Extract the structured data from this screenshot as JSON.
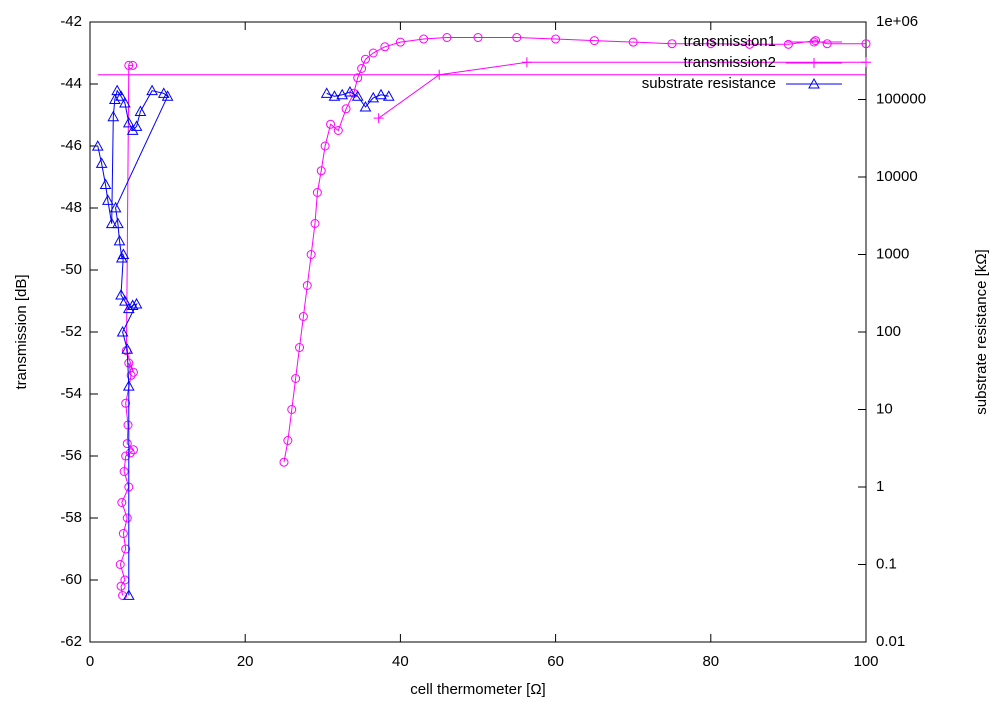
{
  "chart_data": {
    "type": "scatter",
    "xlabel": "cell thermometer [Ω]",
    "ylabel": "transmission [dB]",
    "y2label": "substrate resistance [kΩ]",
    "xlim": [
      0,
      100
    ],
    "xticks": [
      0,
      20,
      40,
      60,
      80,
      100
    ],
    "ylim": [
      -62,
      -42
    ],
    "yticks": [
      -62,
      -60,
      -58,
      -56,
      -54,
      -52,
      -50,
      -48,
      -46,
      -44,
      -42
    ],
    "y2lim": [
      0.01,
      1000000
    ],
    "y2scale": "log",
    "y2ticks": [
      0.01,
      0.1,
      1,
      10,
      100,
      1000,
      10000,
      100000,
      {
        "value": 1000000,
        "label": "1e+06"
      }
    ],
    "legend": "top-right",
    "series": [
      {
        "name": "transmission1",
        "color": "#ff00ff",
        "marker": "circle",
        "axis": "y",
        "x": [
          4.2,
          4.0,
          4.5,
          3.9,
          4.6,
          4.3,
          4.8,
          4.1,
          5.0,
          4.4,
          4.6,
          5.2,
          5.6,
          4.8,
          4.9,
          4.6,
          5.3,
          5.0,
          5.6,
          4.7,
          5.0,
          5.5,
          25,
          25,
          25.5,
          26,
          26.5,
          27,
          27.5,
          28,
          28.5,
          29,
          29.3,
          29.8,
          30.3,
          31,
          32,
          33,
          34,
          34.5,
          35,
          35.5,
          36.5,
          38,
          40,
          43,
          46,
          50,
          55,
          60,
          65,
          70,
          75,
          80,
          85,
          90,
          93.5,
          95,
          100
        ],
        "values": [
          -60.5,
          -60.2,
          -60.0,
          -59.5,
          -59.0,
          -58.5,
          -58.0,
          -57.5,
          -57.0,
          -56.5,
          -56.0,
          -55.9,
          -55.8,
          -55.6,
          -55.0,
          -54.3,
          -53.4,
          -53.0,
          -53.3,
          -52.6,
          -43.4,
          -43.4,
          null,
          -56.2,
          -55.5,
          -54.5,
          -53.5,
          -52.5,
          -51.5,
          -50.5,
          -49.5,
          -48.5,
          -47.5,
          -46.8,
          -46.0,
          -45.3,
          -45.5,
          -44.8,
          -44.3,
          -43.8,
          -43.5,
          -43.2,
          -43.0,
          -42.8,
          -42.65,
          -42.55,
          -42.5,
          -42.5,
          -42.5,
          -42.55,
          -42.6,
          -42.65,
          -42.7,
          -42.7,
          -42.72,
          -42.72,
          -42.6,
          -42.7,
          -42.7
        ]
      },
      {
        "name": "transmission2",
        "color": "#ff00ff",
        "marker": "plus",
        "axis": "y",
        "x": [
          1,
          100,
          100,
          37.2,
          45,
          56.3,
          100
        ],
        "values": [
          -43.7,
          -43.7,
          null,
          -45.1,
          -43.7,
          -43.3,
          -43.3
        ]
      },
      {
        "name": "substrate resistance",
        "color": "#0000ff",
        "marker": "triangle",
        "axis": "y2",
        "x": [
          1,
          1.5,
          2,
          2.3,
          2.8,
          3,
          3.2,
          3.5,
          4,
          4.5,
          5,
          5.5,
          6,
          6.5,
          8,
          9.5,
          10,
          3.3,
          3.6,
          3.8,
          4.1,
          4.3,
          4.0,
          4.5,
          5.0,
          5.5,
          6,
          4.2,
          4.8,
          5.0,
          5.0,
          5.0,
          30.5,
          31.5,
          32.5,
          33.5,
          34.5,
          35.5,
          36.5,
          37.5,
          38.5
        ],
        "values": [
          25000,
          15000,
          8000,
          5000,
          2500,
          60000,
          100000,
          130000,
          110000,
          90000,
          50000,
          40000,
          45000,
          70000,
          130000,
          120000,
          110000,
          4000,
          2500,
          1500,
          900,
          1000,
          300,
          250,
          200,
          220,
          230,
          100,
          60,
          20,
          0.04,
          null,
          120000,
          110000,
          115000,
          125000,
          110000,
          80000,
          105000,
          115000,
          110000
        ]
      }
    ]
  }
}
